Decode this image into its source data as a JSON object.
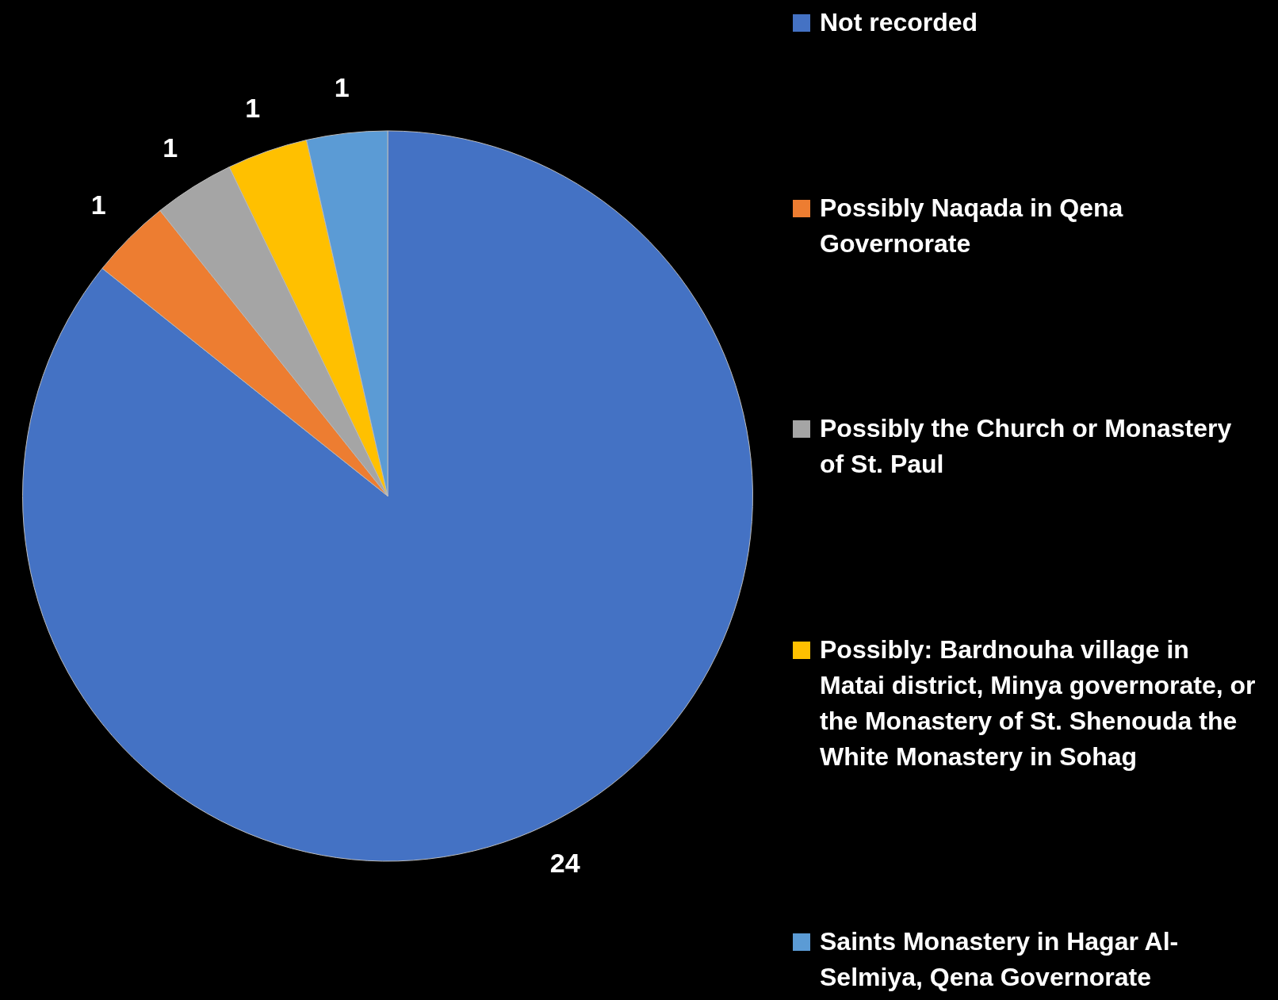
{
  "chart_data": {
    "type": "pie",
    "categories": [
      "Not recorded",
      "Possibly Naqada in Qena Governorate",
      "Possibly the Church or Monastery of St. Paul",
      "Possibly: Bardnouha village in Matai district, Minya governorate, or the Monastery of St. Shenouda the White Monastery in Sohag",
      "Saints Monastery in Hagar Al-Selmiya, Qena Governorate"
    ],
    "values": [
      24,
      1,
      1,
      1,
      1
    ],
    "colors": [
      "#4472c4",
      "#ed7d31",
      "#a5a5a5",
      "#ffc000",
      "#5b9bd5"
    ],
    "data_labels": true,
    "legend": "right"
  }
}
